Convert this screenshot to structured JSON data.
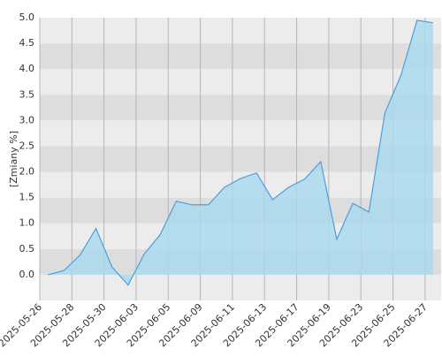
{
  "chart_data": {
    "type": "area",
    "y_label": "[Zmiany %]",
    "x": [
      1,
      2,
      3,
      4,
      5,
      6,
      7,
      8,
      9,
      10,
      11,
      12,
      13,
      14,
      15,
      16,
      17,
      18,
      19,
      20,
      21,
      22,
      23,
      24,
      25
    ],
    "series": [
      {
        "color": "#4a9fe0",
        "values": [
          0.0,
          0.08,
          0.38,
          0.9,
          0.15,
          -0.2,
          0.4,
          0.78,
          1.43,
          1.36,
          1.36,
          1.7,
          1.87,
          1.98,
          1.46,
          1.7,
          1.86,
          2.2,
          0.69,
          1.39,
          1.22,
          3.15,
          3.88,
          4.95,
          4.9
        ]
      }
    ],
    "xlim": [
      0.5,
      25.5
    ],
    "xticks": [
      {
        "value": 0.5,
        "label": "2025-05-26"
      },
      {
        "value": 2.5,
        "label": "2025-05-28"
      },
      {
        "value": 4.5,
        "label": "2025-05-30"
      },
      {
        "value": 6.5,
        "label": "2025-06-03"
      },
      {
        "value": 8.5,
        "label": "2025-06-05"
      },
      {
        "value": 10.5,
        "label": "2025-06-09"
      },
      {
        "value": 12.5,
        "label": "2025-06-11"
      },
      {
        "value": 14.5,
        "label": "2025-06-13"
      },
      {
        "value": 16.5,
        "label": "2025-06-17"
      },
      {
        "value": 18.5,
        "label": "2025-06-19"
      },
      {
        "value": 20.5,
        "label": "2025-06-23"
      },
      {
        "value": 22.5,
        "label": "2025-06-25"
      },
      {
        "value": 24.5,
        "label": "2025-06-27"
      }
    ],
    "ylim": [
      -0.5,
      5
    ],
    "yticks": [
      {
        "value": 0,
        "label": "0.0"
      },
      {
        "value": 0.5,
        "label": "0.5"
      },
      {
        "value": 1,
        "label": "1.0"
      },
      {
        "value": 1.5,
        "label": "1.5"
      },
      {
        "value": 2,
        "label": "2.0"
      },
      {
        "value": 2.5,
        "label": "2.5"
      },
      {
        "value": 3,
        "label": "3.0"
      },
      {
        "value": 3.5,
        "label": "3.5"
      },
      {
        "value": 4,
        "label": "4.0"
      },
      {
        "value": 4.5,
        "label": "4.5"
      },
      {
        "value": 5,
        "label": "5.0"
      }
    ],
    "band_colors": [
      "#ececec",
      "#dddddd"
    ],
    "fill_color": "#a9d9ef"
  }
}
